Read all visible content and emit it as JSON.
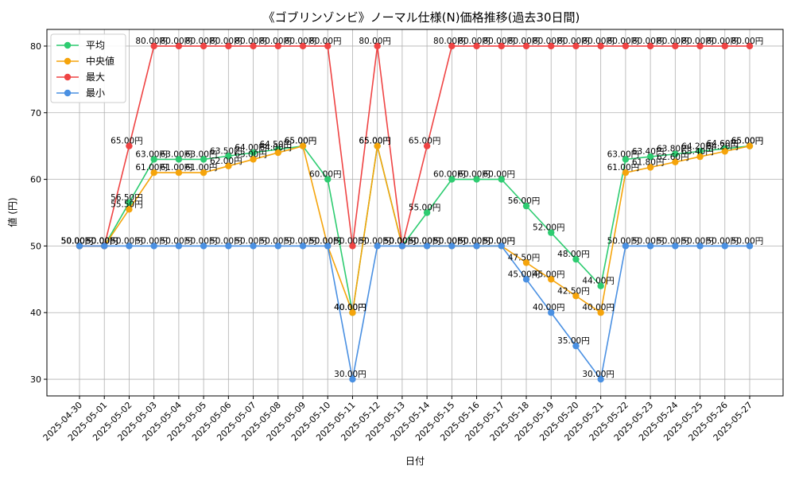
{
  "chart_data": {
    "type": "line",
    "title": "《ゴブリンゾンビ》ノーマル仕様(N)価格推移(過去30日間)",
    "xlabel": "日付",
    "ylabel": "値 (円)",
    "ylim": [
      27.5,
      82.5
    ],
    "yticks": [
      30,
      40,
      50,
      60,
      70,
      80
    ],
    "grid": true,
    "legend_position": "top-left",
    "value_suffix": "円",
    "categories": [
      "2025-04-30",
      "2025-05-01",
      "2025-05-02",
      "2025-05-03",
      "2025-05-04",
      "2025-05-05",
      "2025-05-06",
      "2025-05-07",
      "2025-05-08",
      "2025-05-09",
      "2025-05-10",
      "2025-05-11",
      "2025-05-12",
      "2025-05-13",
      "2025-05-14",
      "2025-05-15",
      "2025-05-16",
      "2025-05-17",
      "2025-05-18",
      "2025-05-19",
      "2025-05-20",
      "2025-05-21",
      "2025-05-22",
      "2025-05-23",
      "2025-05-24",
      "2025-05-25",
      "2025-05-26",
      "2025-05-27"
    ],
    "series": [
      {
        "name": "平均",
        "color": "#2ecc71",
        "values": [
          50,
          50,
          56.5,
          63,
          63,
          63,
          63.5,
          64,
          64.5,
          65,
          60,
          40,
          65,
          50,
          55,
          60,
          60,
          60,
          56,
          52,
          48,
          44,
          63,
          63.4,
          63.8,
          64.2,
          64.6,
          65
        ]
      },
      {
        "name": "中央値",
        "color": "#f5a40b",
        "values": [
          50,
          50,
          55.5,
          61,
          61,
          61,
          62,
          63,
          64,
          65,
          50,
          40,
          65,
          50,
          50,
          50,
          50,
          50,
          47.5,
          45,
          42.5,
          40,
          61,
          61.8,
          62.6,
          63.4,
          64.2,
          65
        ]
      },
      {
        "name": "最大",
        "color": "#ef4444",
        "values": [
          50,
          50,
          65,
          80,
          80,
          80,
          80,
          80,
          80,
          80,
          80,
          50,
          80,
          50,
          65,
          80,
          80,
          80,
          80,
          80,
          80,
          80,
          80,
          80,
          80,
          80,
          80,
          80
        ]
      },
      {
        "name": "最小",
        "color": "#4a90e2",
        "values": [
          50,
          50,
          50,
          50,
          50,
          50,
          50,
          50,
          50,
          50,
          50,
          30,
          50,
          50,
          50,
          50,
          50,
          50,
          45,
          40,
          35,
          30,
          50,
          50,
          50,
          50,
          50,
          50
        ]
      }
    ]
  }
}
